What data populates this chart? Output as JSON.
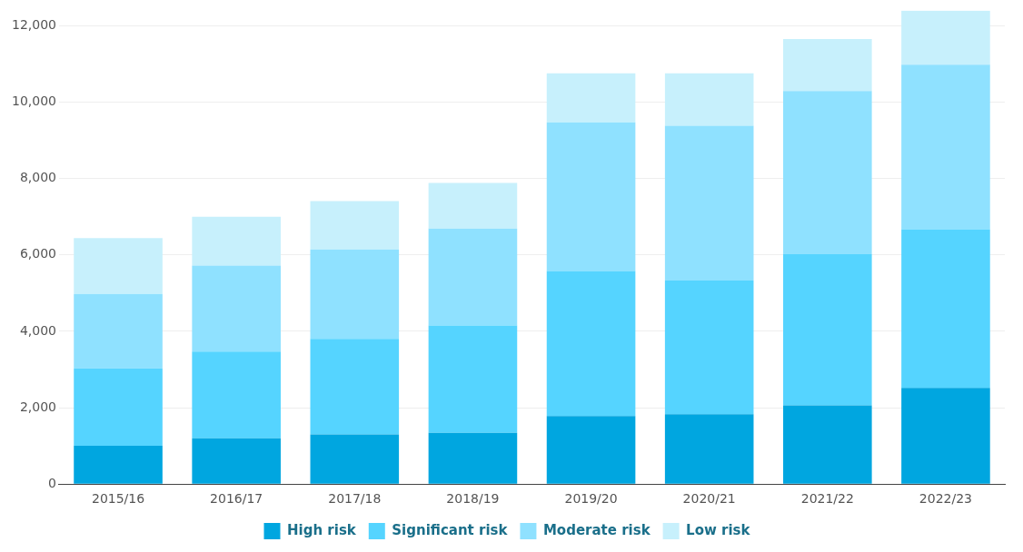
{
  "chart_data": {
    "type": "bar",
    "stacked": true,
    "categories": [
      "2015/16",
      "2016/17",
      "2017/18",
      "2018/19",
      "2019/20",
      "2020/21",
      "2021/22",
      "2022/23"
    ],
    "series": [
      {
        "name": "High risk",
        "color": "#00a6e0",
        "values": [
          1000,
          1200,
          1300,
          1340,
          1780,
          1830,
          2060,
          2520
        ]
      },
      {
        "name": "Significant risk",
        "color": "#55d4ff",
        "values": [
          2030,
          2270,
          2500,
          2810,
          3800,
          3500,
          3960,
          4150
        ]
      },
      {
        "name": "Moderate risk",
        "color": "#8fe1ff",
        "values": [
          1950,
          2250,
          2340,
          2540,
          3890,
          4050,
          4270,
          4310
        ]
      },
      {
        "name": "Low risk",
        "color": "#c7f0fc",
        "values": [
          1460,
          1280,
          1270,
          1190,
          1280,
          1370,
          1360,
          1410
        ]
      }
    ],
    "ylim": [
      0,
      12400
    ],
    "yticks": [
      {
        "value": 0,
        "label": "0"
      },
      {
        "value": 2000,
        "label": "2,000"
      },
      {
        "value": 4000,
        "label": "4,000"
      },
      {
        "value": 6000,
        "label": "6,000"
      },
      {
        "value": 8000,
        "label": "8,000"
      },
      {
        "value": 10000,
        "label": "10,000"
      },
      {
        "value": 12000,
        "label": "12,000"
      }
    ],
    "grid": "y",
    "legend": "bottom"
  }
}
